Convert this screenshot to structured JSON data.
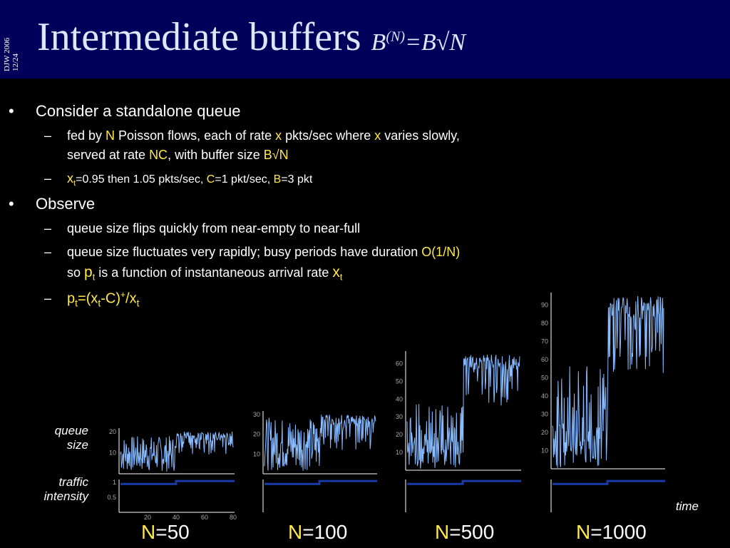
{
  "header": {
    "side_line1": "DJW 2006",
    "side_line2": "12/24",
    "title": "Intermediate buffers",
    "formula_b": "B",
    "formula_sup": "(N)",
    "formula_rest": "=B√N"
  },
  "bullets": {
    "b1": "Consider a standalone queue",
    "s1": {
      "a": "fed by ",
      "b": "N",
      "c": " Poisson flows, each of rate ",
      "d": "x",
      "e": " pkts/sec where ",
      "f": "x",
      "g": " varies slowly,"
    },
    "s1b": {
      "a": "served at rate ",
      "b": "NC",
      "c": ", with buffer size ",
      "d": "B√N"
    },
    "s2": {
      "a": "x",
      "b": "t",
      "c": "=0.95 then 1.05 pkts/sec, ",
      "d": "C",
      "e": "=1 pkt/sec, ",
      "f": "B",
      "g": "=3 pkt"
    },
    "b2": "Observe",
    "s3": "queue size flips quickly from near-empty to near-full",
    "s4": {
      "a": "queue size fluctuates very rapidly; busy periods have duration ",
      "b": "O(1/N)"
    },
    "s4b": {
      "a": "so ",
      "b": "p",
      "c": "t",
      "d": " is a function of instantaneous arrival rate ",
      "e": "x",
      "f": "t"
    },
    "s5": {
      "a": "p",
      "b": "t",
      "c": "=(x",
      "d": "t",
      "e": "-C)",
      "f": "+",
      "g": "/x",
      "h": "t"
    },
    "bullet_char": "•",
    "dash_char": "–"
  },
  "labels": {
    "queue_size_1": "queue",
    "queue_size_2": "size",
    "traffic_1": "traffic",
    "traffic_2": "intensity",
    "time": "time"
  },
  "panels": [
    {
      "n_label": "N",
      "n_value": "=50",
      "queue_max": 20,
      "queue_ticks": [
        "10",
        "20"
      ],
      "intensity_ticks": [
        "0.5",
        "1"
      ],
      "x_ticks": [
        "20",
        "40",
        "60",
        "80"
      ]
    },
    {
      "n_label": "N",
      "n_value": "=100",
      "queue_max": 30,
      "queue_ticks": [
        "10",
        "20",
        "30"
      ]
    },
    {
      "n_label": "N",
      "n_value": "=500",
      "queue_max": 65,
      "queue_ticks": [
        "10",
        "20",
        "30",
        "40",
        "50",
        "60"
      ]
    },
    {
      "n_label": "N",
      "n_value": "=1000",
      "queue_max": 95,
      "queue_ticks": [
        "10",
        "20",
        "30",
        "40",
        "50",
        "60",
        "70",
        "80",
        "90"
      ]
    }
  ],
  "colors": {
    "accent": "#ffe94a",
    "trace": "#88bbff",
    "intensity": "#1a3aa8",
    "title": "#dde8ff",
    "header_bg": "#00005a"
  }
}
